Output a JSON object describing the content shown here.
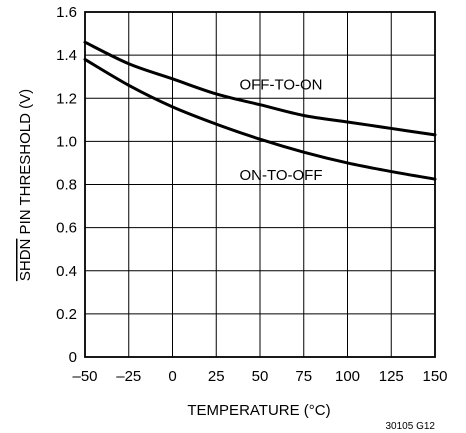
{
  "chart_data": {
    "type": "line",
    "title": "",
    "xlabel": "TEMPERATURE (°C)",
    "ylabel": "SHDN PIN THRESHOLD (V)",
    "ylabel_overline": "SHDN",
    "ylabel_rest": " PIN THRESHOLD (V)",
    "xlim": [
      -50,
      150
    ],
    "ylim": [
      0,
      1.6
    ],
    "xticks": [
      -50,
      -25,
      0,
      25,
      50,
      75,
      100,
      125,
      150
    ],
    "xtick_labels": [
      "–50",
      "–25",
      "0",
      "25",
      "50",
      "75",
      "100",
      "125",
      "150"
    ],
    "yticks": [
      0,
      0.2,
      0.4,
      0.6,
      0.8,
      1.0,
      1.2,
      1.4,
      1.6
    ],
    "ytick_labels": [
      "0",
      "0.2",
      "0.4",
      "0.6",
      "0.8",
      "1.0",
      "1.2",
      "1.4",
      "1.6"
    ],
    "grid": true,
    "legend": "none",
    "series": [
      {
        "name": "OFF-TO-ON",
        "x": [
          -50,
          -25,
          0,
          25,
          50,
          75,
          100,
          125,
          150
        ],
        "y": [
          1.46,
          1.36,
          1.29,
          1.22,
          1.17,
          1.12,
          1.09,
          1.06,
          1.03
        ]
      },
      {
        "name": "ON-TO-OFF",
        "x": [
          -50,
          -25,
          0,
          25,
          50,
          75,
          100,
          125,
          150
        ],
        "y": [
          1.38,
          1.26,
          1.16,
          1.08,
          1.01,
          0.95,
          0.9,
          0.86,
          0.825
        ]
      }
    ],
    "annotations": [
      {
        "text": "OFF-TO-ON",
        "x": 62,
        "y": 1.24
      },
      {
        "text": "ON-TO-OFF",
        "x": 62,
        "y": 0.82
      }
    ],
    "figure_id": "30105 G12"
  },
  "colors": {
    "line": "#000000",
    "grid": "#000000",
    "background": "#ffffff"
  }
}
